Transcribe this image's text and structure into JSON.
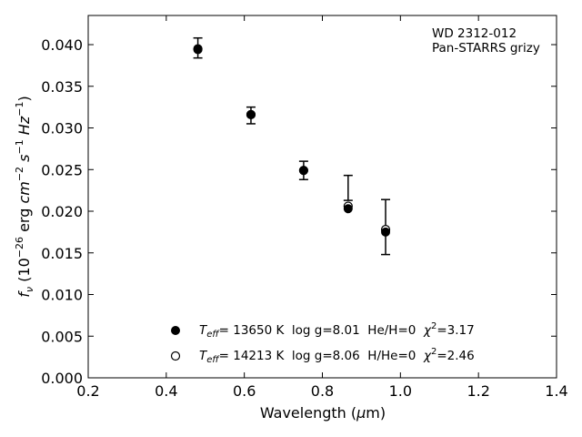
{
  "chart_data": {
    "type": "scatter",
    "annotation_lines": [
      "WD 2312-012",
      "Pan-STARRS grizy"
    ],
    "xlabel": "Wavelength (μm)",
    "ylabel": "fν (10⁻²⁶ erg cm⁻² s⁻¹ Hz⁻¹)",
    "xlim": [
      0.2,
      1.4
    ],
    "ylim": [
      0.0,
      0.0435
    ],
    "xticks": [
      0.2,
      0.4,
      0.6,
      0.8,
      1.0,
      1.2,
      1.4
    ],
    "xtick_labels": [
      "0.2",
      "0.4",
      "0.6",
      "0.8",
      "1.0",
      "1.2",
      "1.4"
    ],
    "yticks": [
      0.0,
      0.005,
      0.01,
      0.015,
      0.02,
      0.025,
      0.03,
      0.035,
      0.04
    ],
    "ytick_labels": [
      "0.000",
      "0.005",
      "0.010",
      "0.015",
      "0.020",
      "0.025",
      "0.030",
      "0.035",
      "0.040"
    ],
    "grid": false,
    "legend_position": "bottom-center",
    "observed": {
      "x": [
        0.481,
        0.617,
        0.752,
        0.866,
        0.962
      ],
      "y": [
        0.0396,
        0.0315,
        0.0249,
        0.0228,
        0.0181
      ],
      "yerr": [
        0.0012,
        0.001,
        0.0011,
        0.0015,
        0.0033
      ]
    },
    "series": [
      {
        "name": "T_eff= 13650 K  log g=8.01  He/H=0  χ²=3.17",
        "marker": "filled",
        "x": [
          0.481,
          0.617,
          0.752,
          0.866,
          0.962
        ],
        "y": [
          0.0394,
          0.0316,
          0.0249,
          0.0203,
          0.0175
        ]
      },
      {
        "name": "T_eff= 14213 K  log g=8.06  H/He=0  χ²=2.46",
        "marker": "open",
        "x": [
          0.481,
          0.617,
          0.752,
          0.866,
          0.962
        ],
        "y": [
          0.0395,
          0.0316,
          0.0249,
          0.0206,
          0.0178
        ]
      }
    ],
    "legend": [
      {
        "teff": "= 13650 K",
        "rest": "  log g=8.01  He/H=0  ",
        "chi": "=3.17"
      },
      {
        "teff": "= 14213 K",
        "rest": "  log g=8.06  H/He=0  ",
        "chi": "=2.46"
      }
    ],
    "colors": {
      "marker": "#000000",
      "axis": "#000000",
      "background": "#ffffff"
    }
  }
}
